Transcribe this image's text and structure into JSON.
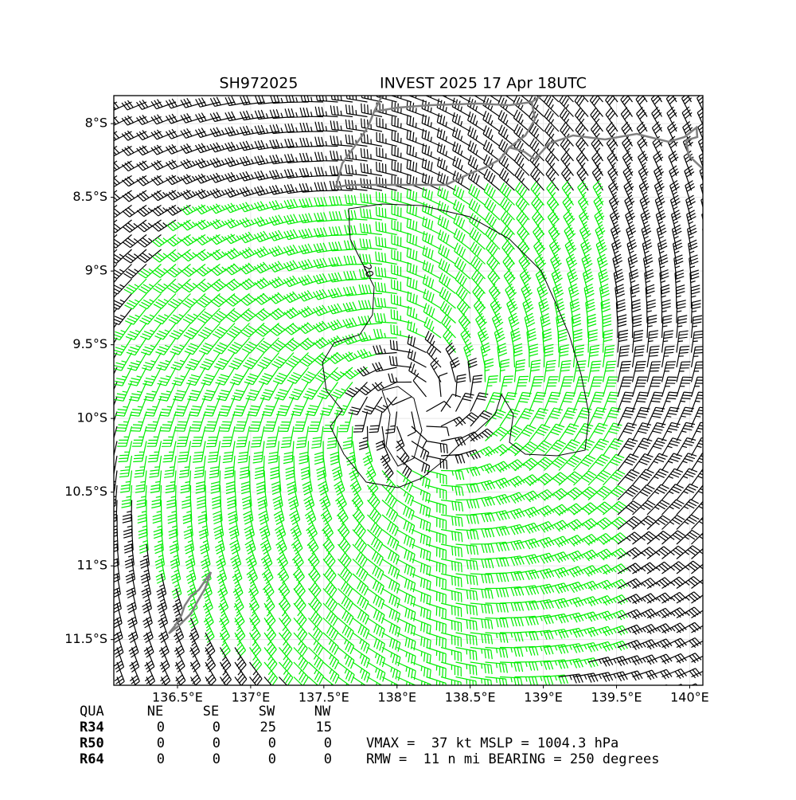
{
  "chart_data": {
    "type": "wind-barb-map",
    "title_left": "SH972025",
    "title_right": "INVEST 2025 17 Apr 18UTC",
    "xlim": [
      136.065,
      140.09
    ],
    "ylim": [
      -11.81,
      -7.81
    ],
    "xticks": [
      {
        "value": 136.5,
        "label": "136.5°E"
      },
      {
        "value": 137,
        "label": "137°E"
      },
      {
        "value": 137.5,
        "label": "137.5°E"
      },
      {
        "value": 138,
        "label": "138°E"
      },
      {
        "value": 138.5,
        "label": "138.5°E"
      },
      {
        "value": 139,
        "label": "139°E"
      },
      {
        "value": 139.5,
        "label": "139.5°E"
      },
      {
        "value": 140,
        "label": "140°E"
      }
    ],
    "yticks": [
      {
        "value": -8,
        "label": "8°S"
      },
      {
        "value": -8.5,
        "label": "8.5°S"
      },
      {
        "value": -9,
        "label": "9°S"
      },
      {
        "value": -9.5,
        "label": "9.5°S"
      },
      {
        "value": -10,
        "label": "10°S"
      },
      {
        "value": -10.5,
        "label": "10.5°S"
      },
      {
        "value": -11,
        "label": "11°S"
      },
      {
        "value": -11.5,
        "label": "11.5°S"
      }
    ],
    "grid": true,
    "contour_label": "20",
    "quadrant_table": {
      "header": [
        "QUA",
        "NE",
        "SE",
        "SW",
        "NW"
      ],
      "rows": [
        [
          "R34",
          0,
          0,
          25,
          15
        ],
        [
          "R50",
          0,
          0,
          0,
          0
        ],
        [
          "R64",
          0,
          0,
          0,
          0
        ]
      ]
    },
    "info_lines": [
      "VMAX =  37 kt MSLP = 1004.3 hPa",
      "RMW =  11 n mi BEARING = 250 degrees"
    ]
  }
}
